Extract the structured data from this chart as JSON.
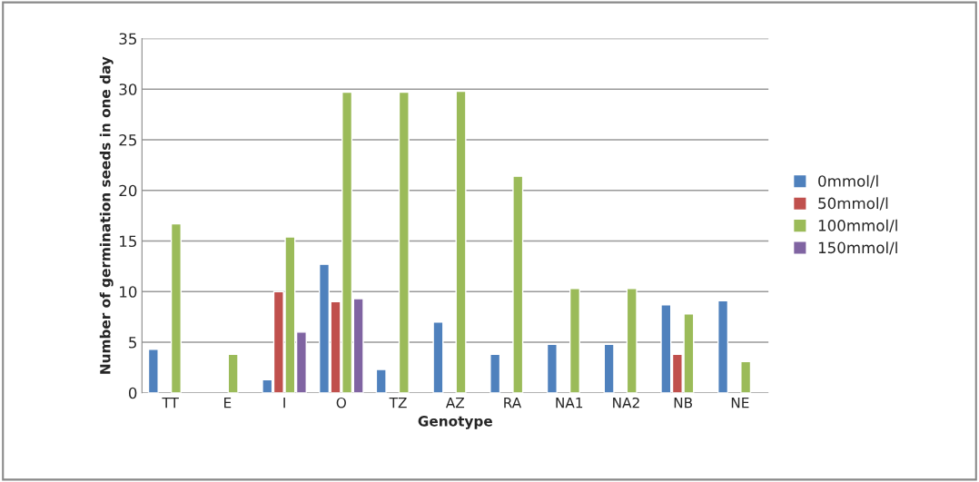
{
  "chart_data": {
    "type": "bar",
    "xlabel": "Genotype",
    "ylabel": "Number of germination seeds in one day",
    "categories": [
      "TT",
      "E",
      "I",
      "O",
      "TZ",
      "AZ",
      "RA",
      "NA1",
      "NA2",
      "NB",
      "NE"
    ],
    "series": [
      {
        "name": "0mmol/l",
        "color": "#4f81bd",
        "values": [
          4.3,
          null,
          1.3,
          12.7,
          2.3,
          7.0,
          3.8,
          4.8,
          4.8,
          8.7,
          9.1
        ]
      },
      {
        "name": "50mmol/l",
        "color": "#c0504d",
        "values": [
          null,
          null,
          10.0,
          9.0,
          null,
          null,
          null,
          null,
          null,
          3.8,
          null
        ]
      },
      {
        "name": "100mmol/l",
        "color": "#9bbb59",
        "values": [
          16.7,
          3.8,
          15.4,
          29.7,
          29.7,
          29.8,
          21.4,
          10.3,
          10.3,
          7.8,
          3.1
        ]
      },
      {
        "name": "150mmol/l",
        "color": "#8064a2",
        "values": [
          null,
          null,
          6.0,
          9.3,
          null,
          null,
          null,
          null,
          null,
          null,
          null
        ]
      }
    ],
    "ylim": [
      0,
      35
    ],
    "yticks": [
      0,
      5,
      10,
      15,
      20,
      25,
      30,
      35
    ],
    "grid": "y",
    "legend": "right"
  }
}
